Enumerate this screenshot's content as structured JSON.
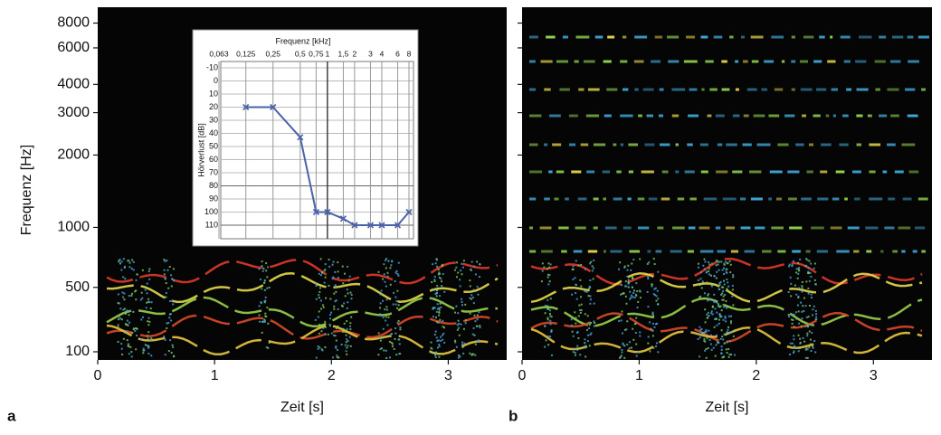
{
  "chart_data": [
    {
      "type": "spectrogram",
      "panel_label": "a",
      "xlabel": "Zeit [s]",
      "ylabel": "Frequenz [Hz]",
      "xlim": [
        0,
        3.5
      ],
      "xticks": [
        0,
        1,
        2,
        3
      ],
      "ylim": [
        100,
        8000
      ],
      "yticks": [
        100,
        500,
        1000,
        2000,
        3000,
        4000,
        6000,
        8000
      ]
    },
    {
      "type": "spectrogram",
      "panel_label": "b",
      "xlabel": "Zeit [s]",
      "xlim": [
        0,
        3.5
      ],
      "xticks": [
        0,
        1,
        2,
        3
      ],
      "harmonics": true
    },
    {
      "type": "line",
      "title": "Frequenz [kHz]",
      "ylabel": "Hörverlust [dB]",
      "xscale": "log",
      "color": "#4a62a8",
      "x": [
        0.125,
        0.25,
        0.5,
        0.75,
        1,
        1.5,
        2,
        3,
        4,
        6,
        8
      ],
      "values": [
        20,
        20,
        43,
        100,
        100,
        105,
        110,
        110,
        110,
        110,
        100
      ],
      "xlim": [
        0.063,
        8
      ],
      "xticks": [
        {
          "value": 0.063,
          "label": "0,063"
        },
        {
          "value": 0.125,
          "label": "0,125"
        },
        {
          "value": 0.25,
          "label": "0,25"
        },
        {
          "value": 0.5,
          "label": "0,5"
        },
        {
          "value": 0.75,
          "label": "0,75"
        },
        1,
        {
          "value": 1.5,
          "label": "1,5"
        },
        2,
        3,
        4,
        6,
        8
      ],
      "ylim": [
        -10,
        110
      ],
      "yticks": [
        -10,
        0,
        10,
        20,
        30,
        40,
        50,
        60,
        70,
        80,
        90,
        100,
        110
      ]
    }
  ]
}
